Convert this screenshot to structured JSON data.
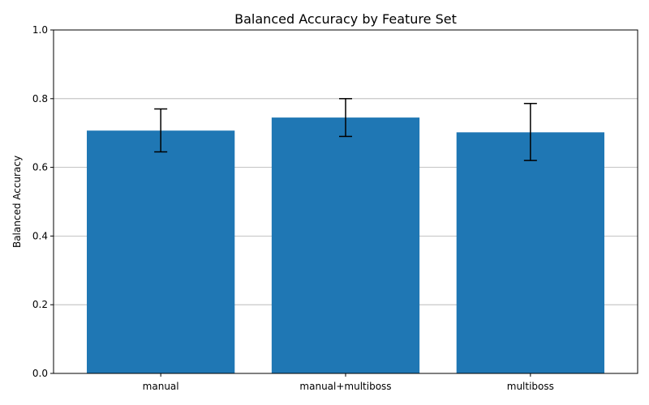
{
  "chart_data": {
    "type": "bar",
    "title": "Balanced Accuracy by Feature Set",
    "xlabel": "",
    "ylabel": "Balanced Accuracy",
    "categories": [
      "manual",
      "manual+multiboss",
      "multiboss"
    ],
    "values": [
      0.707,
      0.745,
      0.702
    ],
    "error_low": [
      0.645,
      0.69,
      0.62
    ],
    "error_high": [
      0.77,
      0.8,
      0.786
    ],
    "ylim": [
      0,
      1.0
    ],
    "yticks": [
      0.0,
      0.2,
      0.4,
      0.6,
      0.8,
      1.0
    ],
    "ytick_labels": [
      "0.0",
      "0.2",
      "0.4",
      "0.6",
      "0.8",
      "1.0"
    ],
    "grid": "y-major",
    "bar_color": "#1f77b4",
    "error_color": "#000000",
    "grid_color": "#b0b0b0"
  }
}
